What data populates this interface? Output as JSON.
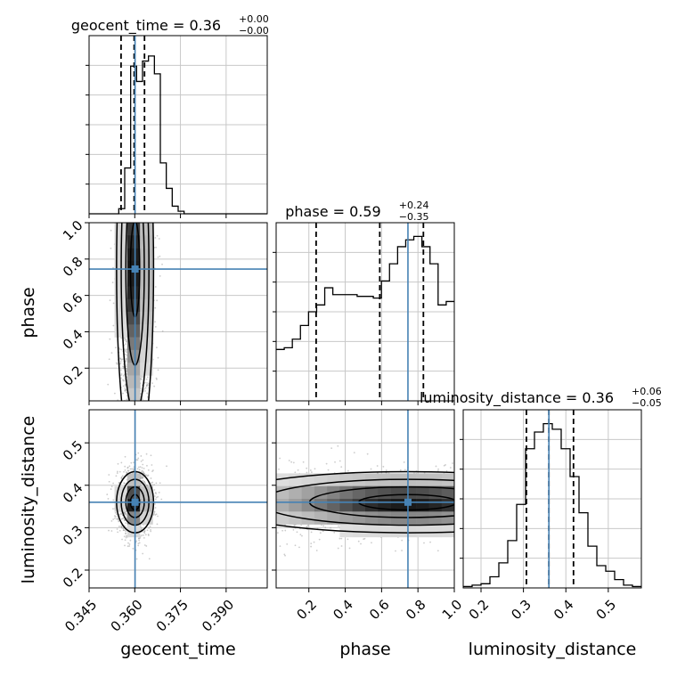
{
  "chart_data": {
    "type": "corner",
    "grid": true,
    "params": [
      "geocent_time",
      "phase",
      "luminosity_distance"
    ],
    "axis_labels": [
      "geocent_time",
      "phase",
      "luminosity_distance"
    ],
    "truths": [
      0.3601,
      0.745,
      0.36
    ],
    "ranges": [
      [
        0.345,
        0.4035
      ],
      [
        0.02,
        1.0
      ],
      [
        0.158,
        0.578
      ]
    ],
    "ticks": {
      "geocent_time": {
        "values": [
          0.345,
          0.36,
          0.375,
          0.39
        ],
        "labels": [
          "0.345",
          "0.360",
          "0.375",
          "0.390"
        ]
      },
      "phase": {
        "values": [
          0.2,
          0.4,
          0.6,
          0.8,
          1.0
        ],
        "labels": [
          "0.2",
          "0.4",
          "0.6",
          "0.8",
          "1.0"
        ]
      },
      "luminosity_distance": {
        "values": [
          0.2,
          0.3,
          0.4,
          0.5
        ],
        "labels": [
          "0.2",
          "0.3",
          "0.4",
          "0.5"
        ]
      }
    },
    "diag_titles": [
      {
        "name": "geocent_time",
        "median": "0.36",
        "plus": "+0.00",
        "minus": "−0.00"
      },
      {
        "name": "phase",
        "median": "0.59",
        "plus": "+0.24",
        "minus": "−0.35"
      },
      {
        "name": "luminosity_distance",
        "median": "0.36",
        "plus": "+0.06",
        "minus": "−0.05"
      }
    ],
    "quantiles": [
      [
        0.3555,
        0.3598,
        0.3632
      ],
      [
        0.24,
        0.59,
        0.83
      ],
      [
        0.307,
        0.36,
        0.418
      ]
    ],
    "histograms": [
      {
        "edges_range": [
          0.345,
          0.4035
        ],
        "counts": [
          0,
          0,
          0,
          0,
          0,
          2,
          18,
          58,
          52,
          60,
          62,
          55,
          20,
          10,
          3,
          1,
          0,
          0,
          0,
          0,
          0,
          0,
          0,
          0,
          0,
          0,
          0,
          0,
          0,
          0
        ],
        "ymax": 70
      },
      {
        "edges_range": [
          0.02,
          1.0
        ],
        "counts": [
          15,
          15.5,
          18,
          22,
          26,
          28,
          33,
          31,
          31,
          31,
          30.5,
          30.5,
          30,
          35,
          40,
          45,
          47,
          48,
          45,
          40,
          28,
          29
        ],
        "ymax": 52
      },
      {
        "edges_range": [
          0.158,
          0.578
        ],
        "counts": [
          0.5,
          1,
          1.5,
          4,
          9,
          17,
          30,
          50,
          56,
          59,
          57,
          50,
          40,
          27,
          15,
          8,
          6,
          3,
          1,
          0.5
        ],
        "ymax": 64
      }
    ],
    "pairs": [
      {
        "x": "geocent_time",
        "y": "phase",
        "center": [
          0.3601,
          0.745
        ],
        "sigma": [
          0.0022,
          0.28
        ]
      },
      {
        "x": "geocent_time",
        "y": "luminosity_distance",
        "center": [
          0.3601,
          0.36
        ],
        "sigma": [
          0.0022,
          0.03
        ]
      },
      {
        "x": "phase",
        "y": "luminosity_distance",
        "center": [
          0.745,
          0.36
        ],
        "sigma": [
          0.3,
          0.03
        ]
      }
    ]
  }
}
